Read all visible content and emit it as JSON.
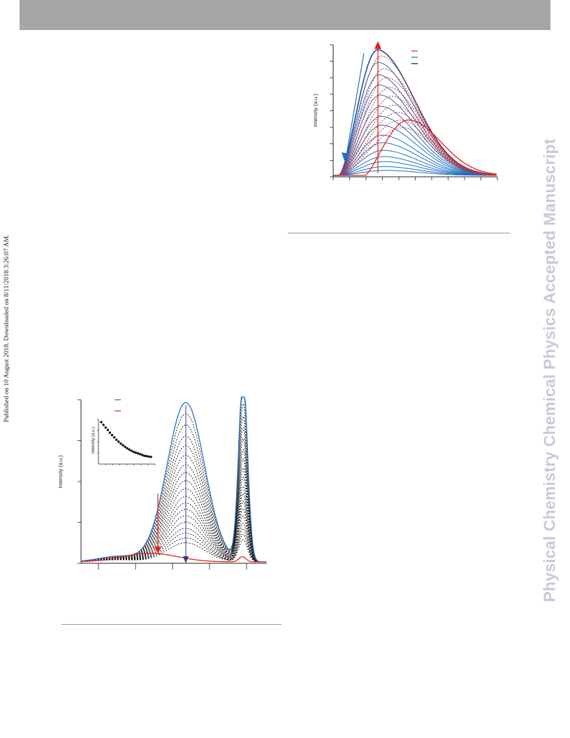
{
  "page": {
    "side_banner": "Physical Chemistry Chemical Physics Accepted Manuscript",
    "published_line": "Published on 10 August 2018. Downloaded on 8/11/2018 3:26:07 AM."
  },
  "figures": {
    "top": {
      "ylabel": "Intensity (a.u.)",
      "legend_colors": [
        "#e2231a",
        "#1f5fbf",
        "#111111"
      ],
      "colors": {
        "blue": "#1f6fc4",
        "red": "#e2231a",
        "dark_blue": "#1a4f9c"
      }
    },
    "bottom": {
      "ylabel": "Intensity (a.u.)",
      "inset_ylabel": "Intensity (a.u.)",
      "legend_colors": [
        "#1f6fc4",
        "#e2231a"
      ],
      "colors": {
        "blue": "#1f6fc4",
        "red": "#e2231a",
        "black": "#111111",
        "dark_blue": "#2d3a8c"
      }
    }
  },
  "chart_data": [
    {
      "type": "line",
      "xlabel": "",
      "ylabel": "Intensity (a.u.)",
      "x_ticks": 10,
      "y_ticks": 8,
      "ylim": [
        0,
        1
      ],
      "grid": false,
      "legend": "top-right",
      "series": [
        {
          "style": "solid-blue",
          "values": [
            1.0,
            0.9,
            0.8,
            0.72,
            0.64,
            0.55,
            0.47,
            0.4,
            0.32,
            0.26,
            0.2,
            0.15,
            0.11,
            0.07,
            0.04
          ]
        },
        {
          "style": "dotted-red",
          "values": [
            0.95,
            0.85,
            0.78,
            0.7,
            0.63,
            0.56,
            0.5,
            0.44,
            0.38
          ]
        },
        {
          "style": "solid-red",
          "values": [
            0.44
          ]
        }
      ]
    },
    {
      "type": "line",
      "xlabel": "",
      "ylabel": "Intensity (a.u.)",
      "x_ticks": 5,
      "y_ticks": 4,
      "ylim": [
        0,
        1
      ],
      "grid": false,
      "legend": "top-left",
      "series": [
        {
          "style": "solid-blue",
          "values": [
            1.0
          ]
        },
        {
          "style": "dotted-black",
          "values": [
            0.93,
            0.86,
            0.79,
            0.73,
            0.67,
            0.61,
            0.56,
            0.51,
            0.46,
            0.41,
            0.37,
            0.33,
            0.29,
            0.25,
            0.21,
            0.18,
            0.15,
            0.12
          ]
        },
        {
          "style": "solid-red",
          "values": [
            0.06
          ]
        }
      ],
      "inset": {
        "type": "scatter",
        "ylabel": "Intensity (a.u.)",
        "values": [
          1.0,
          0.93,
          0.86,
          0.8,
          0.73,
          0.67,
          0.61,
          0.55,
          0.5,
          0.45,
          0.41,
          0.37,
          0.33,
          0.3,
          0.27,
          0.24,
          0.22,
          0.2,
          0.18,
          0.16,
          0.14,
          0.13,
          0.12,
          0.11
        ]
      }
    }
  ]
}
